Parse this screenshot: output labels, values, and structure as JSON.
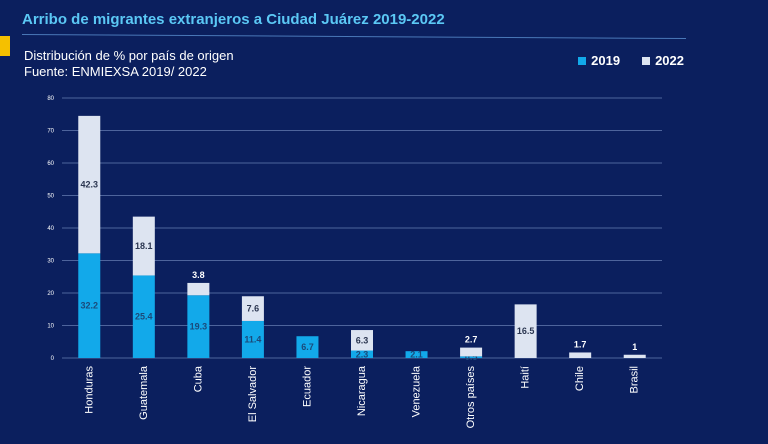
{
  "header": {
    "title": "Arribo de migrantes extranjeros a Ciudad Juárez 2019-2022",
    "subtitle": "Distribución de % por país de origen",
    "source": "Fuente: ENMIEXSA 2019/ 2022"
  },
  "colors": {
    "background": "#0b1f5e",
    "accent": "#f5c000",
    "title": "#5bc8f5",
    "s2019": "#12a9ea",
    "s2022": "#dde4f1"
  },
  "chart_data": {
    "type": "bar",
    "stacked": true,
    "title": "Arribo de migrantes extranjeros a Ciudad Juárez 2019-2022",
    "categories": [
      "Honduras",
      "Guatemala",
      "Cuba",
      "El Salvador",
      "Ecuador",
      "Nicaragua",
      "Venezuela",
      "Otros países",
      "Haití",
      "Chile",
      "Brasil"
    ],
    "series": [
      {
        "name": "2019",
        "values": [
          32.2,
          25.4,
          19.3,
          11.4,
          6.7,
          2.3,
          2.1,
          0.5,
          null,
          null,
          null
        ]
      },
      {
        "name": "2022",
        "values": [
          42.3,
          18.1,
          3.8,
          7.6,
          null,
          6.3,
          null,
          2.7,
          16.5,
          1.7,
          1
        ]
      }
    ],
    "ylim": [
      0,
      80
    ],
    "yticks": [
      0,
      10,
      20,
      30,
      40,
      50,
      60,
      70,
      80
    ],
    "grid": true,
    "legend": "top-right",
    "xlabel": "",
    "ylabel": ""
  }
}
